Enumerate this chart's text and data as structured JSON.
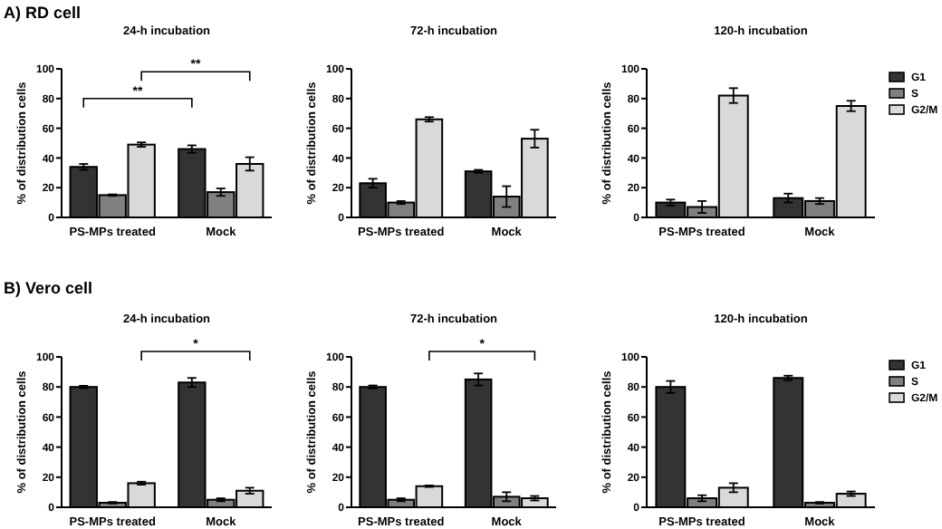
{
  "chart_data": [
    {
      "type": "bar",
      "title": "24-h incubation",
      "ylabel": "% of distribution cells",
      "categories": [
        "PS-MPs treated",
        "Mock"
      ],
      "ylim": [
        0,
        100
      ],
      "yticks": [
        0,
        20,
        40,
        60,
        80,
        100
      ],
      "legend": false,
      "annotations": [
        "A) RD cell",
        "**",
        "**"
      ],
      "series": [
        {
          "color": "#333333",
          "values": [
            34,
            46
          ],
          "errors": [
            2,
            2.5
          ]
        },
        {
          "color": "#808080",
          "values": [
            15,
            17
          ],
          "errors": [
            0.5,
            2.5
          ]
        },
        {
          "color": "#d9d9d9",
          "values": [
            49,
            36
          ],
          "errors": [
            1.5,
            4.5
          ]
        }
      ]
    },
    {
      "type": "bar",
      "title": "72-h incubation",
      "ylabel": "% of distribution cells",
      "categories": [
        "PS-MPs treated",
        "Mock"
      ],
      "ylim": [
        0,
        100
      ],
      "yticks": [
        0,
        20,
        40,
        60,
        80,
        100
      ],
      "legend": false,
      "series": [
        {
          "color": "#333333",
          "values": [
            23,
            31
          ],
          "errors": [
            3,
            1
          ]
        },
        {
          "color": "#808080",
          "values": [
            10,
            14
          ],
          "errors": [
            1,
            7
          ]
        },
        {
          "color": "#d9d9d9",
          "values": [
            66,
            53
          ],
          "errors": [
            1.5,
            6
          ]
        }
      ]
    },
    {
      "type": "bar",
      "title": "120-h incubation",
      "ylabel": "% of distribution cells",
      "categories": [
        "PS-MPs treated",
        "Mock"
      ],
      "ylim": [
        0,
        100
      ],
      "yticks": [
        0,
        20,
        40,
        60,
        80,
        100
      ],
      "legend": "right",
      "series": [
        {
          "name": "G1",
          "color": "#333333",
          "values": [
            10,
            13
          ],
          "errors": [
            2,
            3
          ]
        },
        {
          "name": "S",
          "color": "#808080",
          "values": [
            7,
            11
          ],
          "errors": [
            4,
            2
          ]
        },
        {
          "name": "G2/M",
          "color": "#d9d9d9",
          "values": [
            82,
            75
          ],
          "errors": [
            5,
            3.5
          ]
        }
      ]
    },
    {
      "type": "bar",
      "title": "24-h incubation",
      "ylabel": "% of distribution cells",
      "categories": [
        "PS-MPs treated",
        "Mock"
      ],
      "ylim": [
        0,
        100
      ],
      "yticks": [
        0,
        20,
        40,
        60,
        80,
        100
      ],
      "legend": false,
      "annotations": [
        "B) Vero cell",
        "*"
      ],
      "series": [
        {
          "color": "#333333",
          "values": [
            80,
            83
          ],
          "errors": [
            0.8,
            3
          ]
        },
        {
          "color": "#808080",
          "values": [
            3,
            5
          ],
          "errors": [
            0.5,
            1
          ]
        },
        {
          "color": "#d9d9d9",
          "values": [
            16,
            11
          ],
          "errors": [
            1,
            2
          ]
        }
      ]
    },
    {
      "type": "bar",
      "title": "72-h incubation",
      "ylabel": "% of distribution cells",
      "categories": [
        "PS-MPs treated",
        "Mock"
      ],
      "ylim": [
        0,
        100
      ],
      "yticks": [
        0,
        20,
        40,
        60,
        80,
        100
      ],
      "legend": false,
      "annotations": [
        "*"
      ],
      "series": [
        {
          "color": "#333333",
          "values": [
            80,
            85
          ],
          "errors": [
            1,
            4
          ]
        },
        {
          "color": "#808080",
          "values": [
            5,
            7
          ],
          "errors": [
            1,
            3
          ]
        },
        {
          "color": "#d9d9d9",
          "values": [
            14,
            6
          ],
          "errors": [
            0.5,
            1.5
          ]
        }
      ]
    },
    {
      "type": "bar",
      "title": "120-h incubation",
      "ylabel": "% of distribution cells",
      "categories": [
        "PS-MPs treated",
        "Mock"
      ],
      "ylim": [
        0,
        100
      ],
      "yticks": [
        0,
        20,
        40,
        60,
        80,
        100
      ],
      "legend": "right",
      "series": [
        {
          "name": "G1",
          "color": "#333333",
          "values": [
            80,
            86
          ],
          "errors": [
            4,
            1.5
          ]
        },
        {
          "name": "S",
          "color": "#808080",
          "values": [
            6,
            3
          ],
          "errors": [
            2,
            0.5
          ]
        },
        {
          "name": "G2/M",
          "color": "#d9d9d9",
          "values": [
            13,
            9
          ],
          "errors": [
            3,
            1.5
          ]
        }
      ]
    }
  ]
}
